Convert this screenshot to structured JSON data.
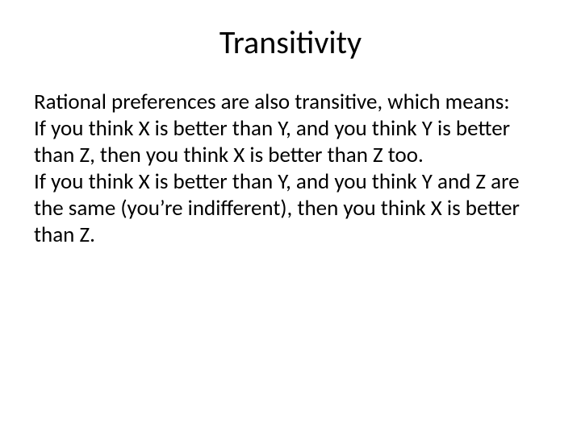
{
  "slide": {
    "title": "Transitivity",
    "title_fontsize": 40,
    "title_color": "#000000",
    "body_fontsize": 27,
    "body_color": "#000000",
    "body_lineheight": 1.22,
    "background_color": "#ffffff",
    "paragraphs": [
      "Rational preferences are also transitive, which means:",
      "If you think X is better than Y, and you think Y is better than Z, then you think X is better than Z too.",
      "If you think X is better than Y, and you think Y and Z are the same (you’re indifferent), then you think X is better than Z."
    ]
  }
}
